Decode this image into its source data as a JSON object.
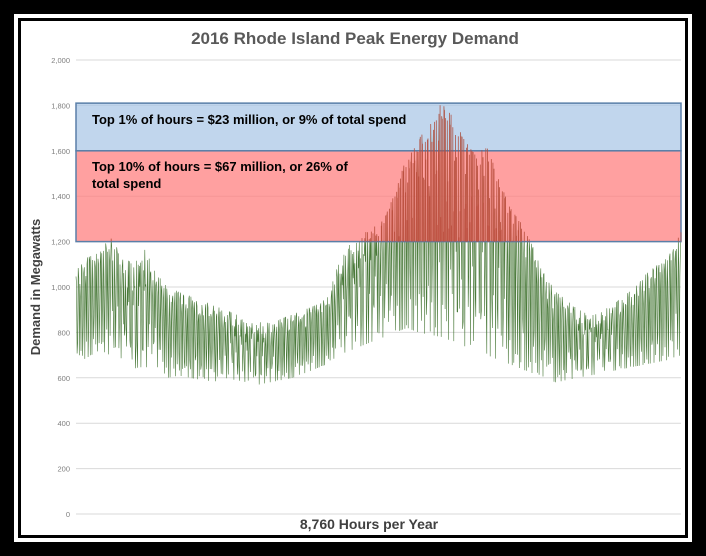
{
  "chart_data": {
    "type": "line",
    "title": "2016 Rhode Island Peak Energy Demand",
    "xlabel": "8,760 Hours per Year",
    "ylabel": "Demand in Megawatts",
    "ylim": [
      0,
      2000
    ],
    "yticks": [
      0,
      200,
      400,
      600,
      800,
      "1,000",
      "1,200",
      "1,400",
      "1,600",
      "1,800",
      "2,000"
    ],
    "ytick_values": [
      0,
      200,
      400,
      600,
      800,
      1000,
      1200,
      1400,
      1600,
      1800,
      2000
    ],
    "x_count": 8760,
    "grid": true,
    "bands": [
      {
        "name": "top1",
        "from": 1600,
        "to": 1810,
        "label": "Top 1% of hours = $23 million, or 9% of total spend",
        "color": "#a9c6e6",
        "border": "#5a7fa8"
      },
      {
        "name": "top10",
        "from": 1200,
        "to": 1600,
        "label_lines": [
          "Top 10% of hours = $67 million, or 26% of",
          "total spend"
        ],
        "color": "#ff7c7c",
        "border": "#5a7fa8"
      }
    ],
    "series": [
      {
        "line_color": "#4a7a3a",
        "above_threshold_color": "#b84a3a",
        "threshold": 1200,
        "weekly_peak_profile": [
          1080,
          1130,
          1150,
          1220,
          1140,
          1100,
          1170,
          1060,
          1000,
          980,
          960,
          920,
          940,
          900,
          880,
          860,
          850,
          840,
          860,
          880,
          900,
          920,
          960,
          1100,
          1190,
          1230,
          1260,
          1300,
          1420,
          1580,
          1650,
          1720,
          1810,
          1750,
          1650,
          1580,
          1620,
          1480,
          1350,
          1280,
          1180,
          1060,
          980,
          940,
          900,
          880,
          900,
          920,
          960,
          1000,
          1060,
          1100,
          1160,
          1250
        ],
        "weekly_trough_profile": [
          660,
          690,
          720,
          700,
          680,
          640,
          650,
          630,
          600,
          610,
          600,
          590,
          580,
          600,
          590,
          580,
          570,
          580,
          590,
          600,
          620,
          640,
          660,
          700,
          720,
          740,
          760,
          780,
          800,
          820,
          800,
          790,
          780,
          760,
          740,
          720,
          700,
          680,
          660,
          640,
          620,
          600,
          580,
          590,
          600,
          610,
          620,
          630,
          640,
          650,
          660,
          670,
          680,
          700
        ]
      }
    ]
  },
  "colors": {
    "gridline": "#d9d9d9",
    "axis_text": "#7f7f7f",
    "title_text": "#595959"
  }
}
